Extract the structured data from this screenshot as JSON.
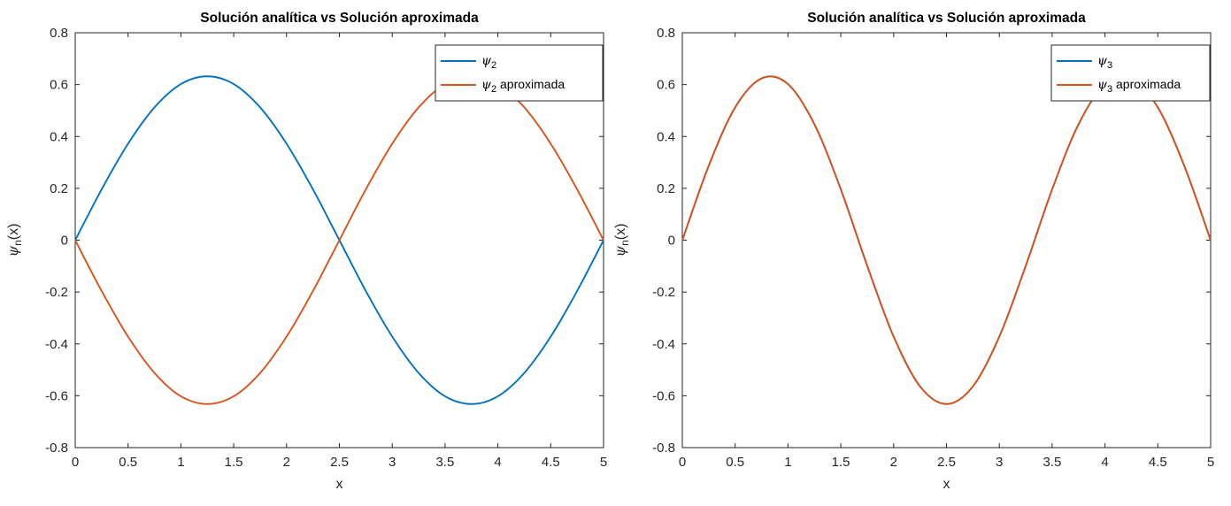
{
  "chart_data": [
    {
      "type": "line",
      "title": "Solución analítica vs Solución aproximada",
      "xlabel": "x",
      "ylabel": {
        "base": "ψ",
        "sub": "n",
        "suffix": "(x)"
      },
      "xlim": [
        0,
        5
      ],
      "ylim": [
        -0.8,
        0.8
      ],
      "xticks": [
        0,
        0.5,
        1,
        1.5,
        2,
        2.5,
        3,
        3.5,
        4,
        4.5,
        5
      ],
      "xtick_labels": [
        "0",
        "0.5",
        "1",
        "1.5",
        "2",
        "2.5",
        "3",
        "3.5",
        "4",
        "4.5",
        "5"
      ],
      "yticks": [
        -0.8,
        -0.6,
        -0.4,
        -0.2,
        0,
        0.2,
        0.4,
        0.6,
        0.8
      ],
      "ytick_labels": [
        "-0.8",
        "-0.6",
        "-0.4",
        "-0.2",
        "0",
        "0.2",
        "0.4",
        "0.6",
        "0.8"
      ],
      "grid": false,
      "legend_position": "top-right",
      "series": [
        {
          "name": {
            "base": "ψ",
            "sub": "2",
            "suffix": ""
          },
          "color": "#0072BD",
          "x": [
            0,
            0.25,
            0.5,
            0.75,
            1,
            1.25,
            1.5,
            1.75,
            2,
            2.25,
            2.5,
            2.75,
            3,
            3.25,
            3.5,
            3.75,
            4,
            4.25,
            4.5,
            4.75,
            5
          ],
          "y": [
            0,
            0.196,
            0.372,
            0.512,
            0.602,
            0.632,
            0.602,
            0.512,
            0.372,
            0.196,
            0,
            -0.196,
            -0.372,
            -0.512,
            -0.602,
            -0.632,
            -0.602,
            -0.512,
            -0.372,
            -0.196,
            0
          ]
        },
        {
          "name": {
            "base": "ψ",
            "sub": "2",
            "suffix": " aproximada"
          },
          "color": "#D95319",
          "x": [
            0,
            0.25,
            0.5,
            0.75,
            1,
            1.25,
            1.5,
            1.75,
            2,
            2.25,
            2.5,
            2.75,
            3,
            3.25,
            3.5,
            3.75,
            4,
            4.25,
            4.5,
            4.75,
            5
          ],
          "y": [
            0,
            -0.196,
            -0.372,
            -0.512,
            -0.602,
            -0.632,
            -0.602,
            -0.512,
            -0.372,
            -0.196,
            0,
            0.196,
            0.372,
            0.512,
            0.602,
            0.632,
            0.602,
            0.512,
            0.372,
            0.196,
            0
          ]
        }
      ]
    },
    {
      "type": "line",
      "title": "Solución analítica vs Solución aproximada",
      "xlabel": "x",
      "ylabel": {
        "base": "ψ",
        "sub": "n",
        "suffix": "(x)"
      },
      "xlim": [
        0,
        5
      ],
      "ylim": [
        -0.8,
        0.8
      ],
      "xticks": [
        0,
        0.5,
        1,
        1.5,
        2,
        2.5,
        3,
        3.5,
        4,
        4.5,
        5
      ],
      "xtick_labels": [
        "0",
        "0.5",
        "1",
        "1.5",
        "2",
        "2.5",
        "3",
        "3.5",
        "4",
        "4.5",
        "5"
      ],
      "yticks": [
        -0.8,
        -0.6,
        -0.4,
        -0.2,
        0,
        0.2,
        0.4,
        0.6,
        0.8
      ],
      "ytick_labels": [
        "-0.8",
        "-0.6",
        "-0.4",
        "-0.2",
        "0",
        "0.2",
        "0.4",
        "0.6",
        "0.8"
      ],
      "grid": false,
      "legend_position": "top-right",
      "series": [
        {
          "name": {
            "base": "ψ",
            "sub": "3",
            "suffix": ""
          },
          "color": "#0072BD",
          "x": [
            0,
            0.25,
            0.5,
            0.75,
            1,
            1.25,
            1.5,
            1.75,
            2,
            2.25,
            2.5,
            2.75,
            3,
            3.25,
            3.5,
            3.75,
            4,
            4.25,
            4.5,
            4.75,
            5
          ],
          "y": [
            0,
            0.287,
            0.512,
            0.624,
            0.602,
            0.447,
            0.196,
            -0.099,
            -0.372,
            -0.564,
            -0.632,
            -0.564,
            -0.372,
            -0.099,
            0.196,
            0.447,
            0.602,
            0.624,
            0.512,
            0.287,
            0
          ]
        },
        {
          "name": {
            "base": "ψ",
            "sub": "3",
            "suffix": " aproximada"
          },
          "color": "#D95319",
          "x": [
            0,
            0.25,
            0.5,
            0.75,
            1,
            1.25,
            1.5,
            1.75,
            2,
            2.25,
            2.5,
            2.75,
            3,
            3.25,
            3.5,
            3.75,
            4,
            4.25,
            4.5,
            4.75,
            5
          ],
          "y": [
            0,
            0.287,
            0.512,
            0.624,
            0.602,
            0.447,
            0.196,
            -0.099,
            -0.372,
            -0.564,
            -0.632,
            -0.564,
            -0.372,
            -0.099,
            0.196,
            0.447,
            0.602,
            0.624,
            0.512,
            0.287,
            0
          ]
        }
      ]
    }
  ]
}
